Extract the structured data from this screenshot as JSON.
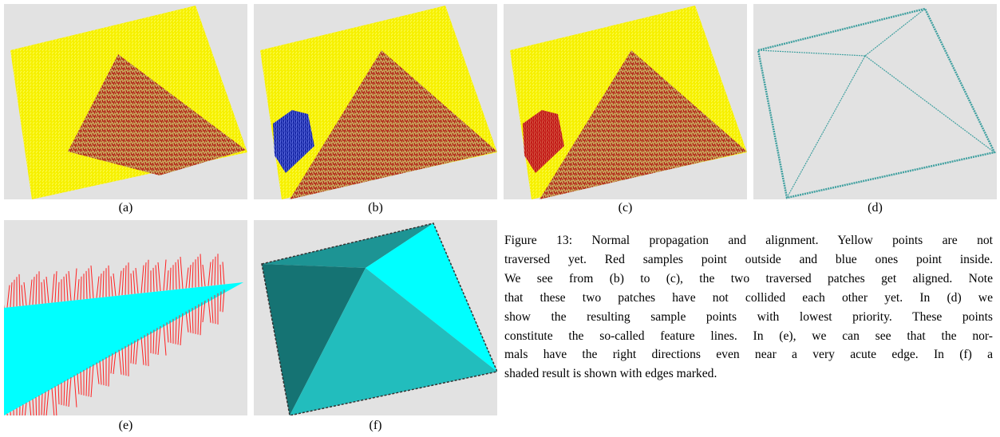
{
  "panels": [
    {
      "label": "(a)"
    },
    {
      "label": "(b)"
    },
    {
      "label": "(c)"
    },
    {
      "label": "(d)"
    },
    {
      "label": "(e)"
    },
    {
      "label": "(f)"
    }
  ],
  "caption": {
    "lines": [
      "Figure 13: Normal propagation and alignment. Yellow points are not",
      "traversed yet. Red samples point outside and blue ones point inside.",
      "We see from (b) to (c), the two traversed patches get aligned. Note",
      "that these two patches have not collided each other yet. In (d) we",
      "show the resulting sample points with lowest priority. These points",
      "constitute the so-called feature lines. In (e), we can see that the nor-",
      "mals have the right directions even near a very acute edge. In (f) a",
      "shaded result is shown with edges marked."
    ]
  }
}
